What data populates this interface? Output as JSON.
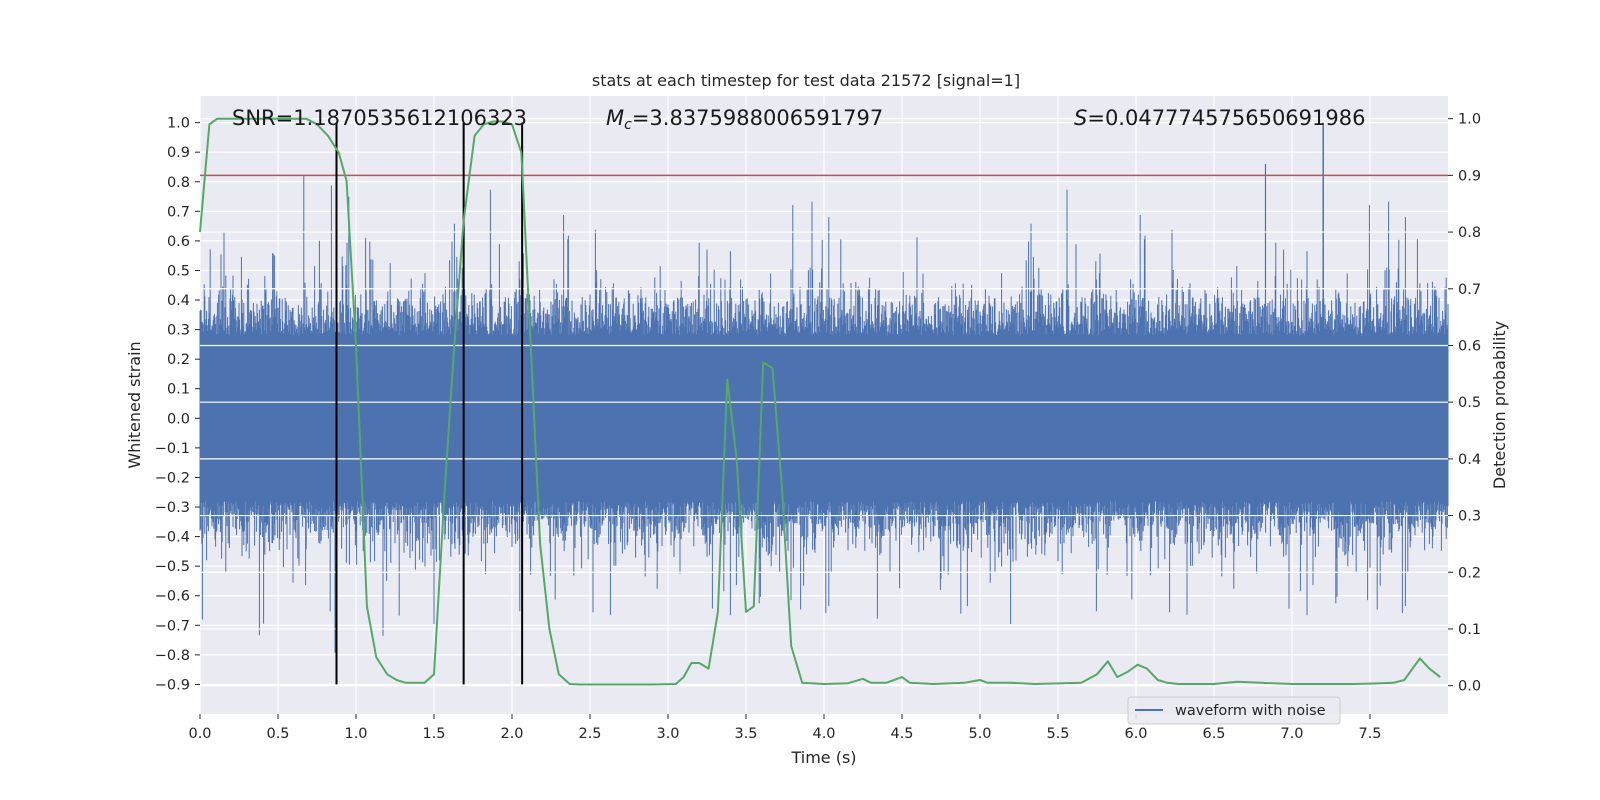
{
  "chart_data": {
    "type": "line",
    "title": "stats at each timestep for test data 21572 [signal=1]",
    "xlabel": "Time (s)",
    "ylabel_left": "Whitened strain",
    "ylabel_right": "Detection probability",
    "xlim": [
      0,
      8.0
    ],
    "ylim_left": [
      -1.0,
      1.09
    ],
    "ylim_right": [
      -0.05,
      1.04
    ],
    "x_ticks": [
      0.0,
      0.5,
      1.0,
      1.5,
      2.0,
      2.5,
      3.0,
      3.5,
      4.0,
      4.5,
      5.0,
      5.5,
      6.0,
      6.5,
      7.0,
      7.5
    ],
    "x_tick_labels": [
      "0.0",
      "0.5",
      "1.0",
      "1.5",
      "2.0",
      "2.5",
      "3.0",
      "3.5",
      "4.0",
      "4.5",
      "5.0",
      "5.5",
      "6.0",
      "6.5",
      "7.0",
      "7.5"
    ],
    "y_left_ticks": [
      -0.9,
      -0.8,
      -0.7,
      -0.6,
      -0.5,
      -0.4,
      -0.3,
      -0.2,
      -0.1,
      0.0,
      0.1,
      0.2,
      0.3,
      0.4,
      0.5,
      0.6,
      0.7,
      0.8,
      0.9,
      1.0
    ],
    "y_left_tick_labels": [
      "−0.9",
      "−0.8",
      "−0.7",
      "−0.6",
      "−0.5",
      "−0.4",
      "−0.3",
      "−0.2",
      "−0.1",
      "0.0",
      "0.1",
      "0.2",
      "0.3",
      "0.4",
      "0.5",
      "0.6",
      "0.7",
      "0.8",
      "0.9",
      "1.0"
    ],
    "y_right_ticks": [
      0.0,
      0.1,
      0.2,
      0.3,
      0.4,
      0.5,
      0.6,
      0.7,
      0.8,
      0.9,
      1.0
    ],
    "y_right_tick_labels": [
      "0.0",
      "0.1",
      "0.2",
      "0.3",
      "0.4",
      "0.5",
      "0.6",
      "0.7",
      "0.8",
      "0.9",
      "1.0"
    ],
    "grid": true,
    "legend": {
      "placement": "lower-right",
      "entries": [
        "waveform with noise"
      ]
    },
    "annotations": {
      "snr": "SNR=1.1870535612106323",
      "mc_symbol": "M",
      "mc_subscript": "c",
      "mc_value": "=3.8375988006591797",
      "s_symbol": "S",
      "s_value": "=0.047774575650691986"
    },
    "waveform": {
      "name": "waveform with noise",
      "color": "#4c72b0",
      "envelope_core": 0.28,
      "envelope_spikes": 0.6,
      "sample_note": "dense noisy strain samples from 0 to 8 s, amplitude mostly within ±0.45 with spikes to ±0.8 and a peak near 1.0 at 7.2 s"
    },
    "threshold_line": {
      "y_right": 0.9,
      "color": "#c44e52"
    },
    "event_markers": {
      "x": [
        0.875,
        1.69,
        2.065
      ],
      "y_left_range": [
        -0.9,
        1.0
      ],
      "color": "#000000"
    },
    "detection_probability": {
      "color": "#55a868",
      "x": [
        0.0,
        0.06,
        0.11,
        0.3,
        0.5,
        0.68,
        0.75,
        0.82,
        0.89,
        0.94,
        1.0,
        1.07,
        1.13,
        1.2,
        1.26,
        1.32,
        1.38,
        1.44,
        1.5,
        1.57,
        1.63,
        1.69,
        1.76,
        1.82,
        1.88,
        1.94,
        2.0,
        2.06,
        2.12,
        2.18,
        2.24,
        2.3,
        2.37,
        2.43,
        2.5,
        2.7,
        2.9,
        3.05,
        3.1,
        3.15,
        3.2,
        3.26,
        3.32,
        3.38,
        3.44,
        3.5,
        3.55,
        3.61,
        3.67,
        3.73,
        3.79,
        3.86,
        4.0,
        4.15,
        4.25,
        4.3,
        4.4,
        4.5,
        4.55,
        4.7,
        4.9,
        5.0,
        5.05,
        5.2,
        5.35,
        5.5,
        5.65,
        5.75,
        5.82,
        5.88,
        5.95,
        6.01,
        6.07,
        6.14,
        6.2,
        6.27,
        6.4,
        6.5,
        6.65,
        6.8,
        7.0,
        7.2,
        7.4,
        7.55,
        7.65,
        7.72,
        7.82,
        7.88,
        7.95
      ],
      "y": [
        0.8,
        0.99,
        1.0,
        1.0,
        1.0,
        1.0,
        0.99,
        0.97,
        0.94,
        0.89,
        0.6,
        0.14,
        0.05,
        0.02,
        0.01,
        0.005,
        0.005,
        0.005,
        0.02,
        0.35,
        0.6,
        0.82,
        0.97,
        0.99,
        0.995,
        0.995,
        0.99,
        0.94,
        0.6,
        0.25,
        0.1,
        0.02,
        0.003,
        0.002,
        0.002,
        0.002,
        0.002,
        0.003,
        0.015,
        0.04,
        0.04,
        0.03,
        0.13,
        0.54,
        0.4,
        0.13,
        0.14,
        0.57,
        0.56,
        0.35,
        0.07,
        0.005,
        0.003,
        0.004,
        0.012,
        0.005,
        0.005,
        0.015,
        0.005,
        0.003,
        0.005,
        0.01,
        0.005,
        0.005,
        0.003,
        0.004,
        0.005,
        0.02,
        0.043,
        0.015,
        0.025,
        0.037,
        0.03,
        0.01,
        0.005,
        0.003,
        0.003,
        0.003,
        0.007,
        0.005,
        0.003,
        0.003,
        0.003,
        0.004,
        0.005,
        0.01,
        0.048,
        0.03,
        0.015
      ]
    }
  }
}
